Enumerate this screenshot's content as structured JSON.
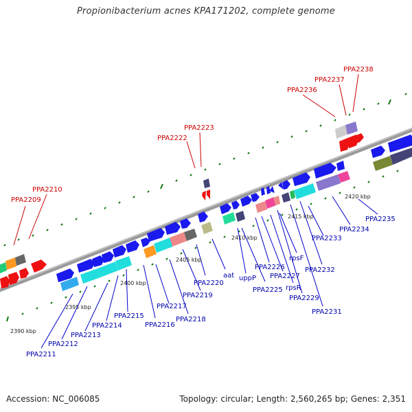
{
  "title": "Propionibacterium acnes KPA171202, complete genome",
  "footer": {
    "accession": "Accession: NC_006085",
    "summary": "Topology: circular; Length: 2,560,265 bp; Genes: 2,351"
  },
  "colors": {
    "forward_gene": "#1a1aee",
    "reverse_gene": "#ee1111",
    "label_blue": "#0000aa",
    "label_red": "#cc0000",
    "backbone": "#888888",
    "tick_green": "#117711"
  },
  "scale_labels": [
    "2390 kbp",
    "2395 kbp",
    "2400 kbp",
    "2405 kbp",
    "2410 kbp",
    "2415 kbp",
    "2420 kbp"
  ],
  "gene_labels_upper": [
    "PPA2209",
    "PPA2210",
    "PPA2222",
    "PPA2223",
    "PPA2236",
    "PPA2237",
    "PPA2238"
  ],
  "gene_labels_lower": [
    "PPA2211",
    "PPA2212",
    "PPA2213",
    "PPA2214",
    "PPA2215",
    "PPA2216",
    "PPA2217",
    "PPA2218",
    "PPA2219",
    "PPA2220",
    "aat",
    "uppP",
    "PPA2225",
    "PPA2226",
    "PPA2227",
    "rpsR",
    "rpsF",
    "PPA2229",
    "PPA2231",
    "PPA2232",
    "PPA2233",
    "PPA2234",
    "PPA2235"
  ]
}
